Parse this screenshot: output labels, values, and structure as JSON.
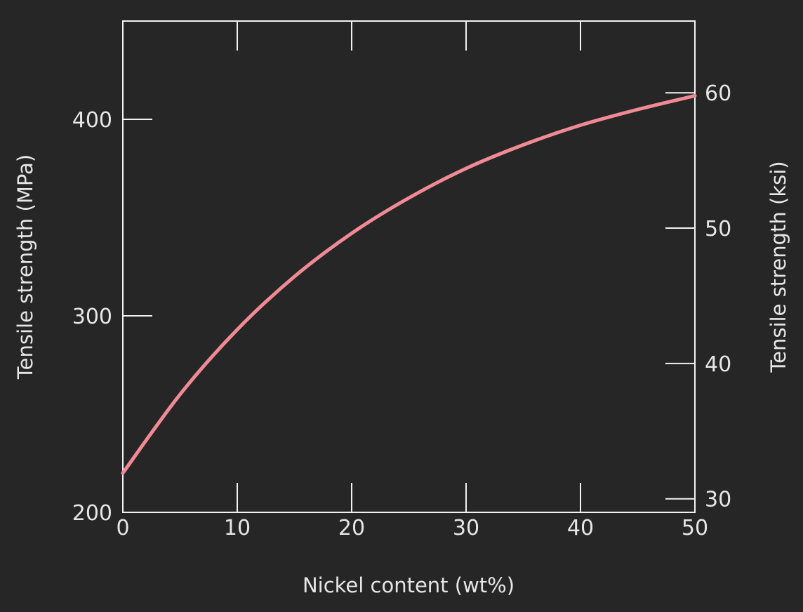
{
  "chart_data": {
    "type": "line",
    "xlabel": "Nickel content (wt%)",
    "ylabel": "Tensile strength (MPa)",
    "ylabel_right": "Tensile strength (ksi)",
    "xlim": [
      0,
      50
    ],
    "ylim": [
      200,
      450
    ],
    "ylim_right_ksi": [
      29,
      65.3
    ],
    "x_ticks": [
      0,
      10,
      20,
      30,
      40,
      50
    ],
    "y_ticks": [
      200,
      300,
      400
    ],
    "y_ticks_right": [
      30,
      40,
      50,
      60
    ],
    "grid": false,
    "series": [
      {
        "color": "#f08a95",
        "x": [
          0,
          5,
          10,
          15,
          20,
          25,
          30,
          35,
          40,
          45,
          50
        ],
        "y": [
          220,
          260,
          293,
          320,
          342,
          360,
          375,
          387,
          397,
          405,
          412
        ]
      }
    ]
  }
}
